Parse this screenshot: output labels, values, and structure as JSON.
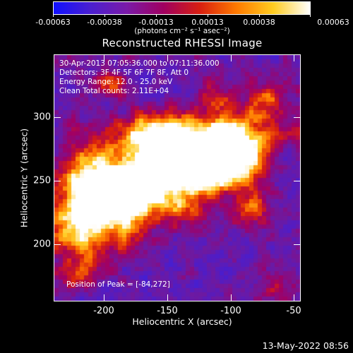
{
  "colorbar": {
    "tick_labels": [
      "-0.00063",
      "-0.00038",
      "-0.00013",
      "0.00013",
      "0.00038",
      "0.00063"
    ],
    "units": "(photons cm⁻² s⁻¹ asec⁻²)",
    "colors": [
      "#1010ff",
      "#4a1fd0",
      "#7a1aa8",
      "#a00060",
      "#d81f10",
      "#ff7a00",
      "#ffcc20",
      "#ffffff"
    ]
  },
  "title": "Reconstructed RHESSI Image",
  "info": {
    "time_range": "30-Apr-2013 07:05:36.000 to 07:11:36.000",
    "detectors": "Detectors: 3F 4F 5F 6F 7F 8F, Att 0",
    "energy_range": "Energy Range: 12.0 - 25.0 keV",
    "clean": "Clean     Total counts: 2.11E+04",
    "peak": "Position of Peak = [-84,272]"
  },
  "axes": {
    "xlabel": "Heliocentric X (arcsec)",
    "ylabel": "Heliocentric Y (arcsec)",
    "xticks": [
      "-200",
      "-150",
      "-100",
      "-50"
    ],
    "yticks": [
      "300",
      "250",
      "200"
    ]
  },
  "timestamp": "13-May-2022 08:56",
  "chart_data": {
    "type": "heatmap",
    "title": "Reconstructed RHESSI Image",
    "xlabel": "Heliocentric X (arcsec)",
    "ylabel": "Heliocentric Y (arcsec)",
    "xlim": [
      -238,
      -45
    ],
    "ylim": [
      155,
      348
    ],
    "xticks": [
      -200,
      -150,
      -100,
      -50
    ],
    "yticks": [
      200,
      250,
      300
    ],
    "zlim": [
      -0.00063,
      0.00063
    ],
    "peak_position": [
      -84,
      272
    ],
    "colorbar_ticks": [
      -0.00063,
      -0.00038,
      -0.00013,
      0.00013,
      0.00038,
      0.00063
    ]
  }
}
